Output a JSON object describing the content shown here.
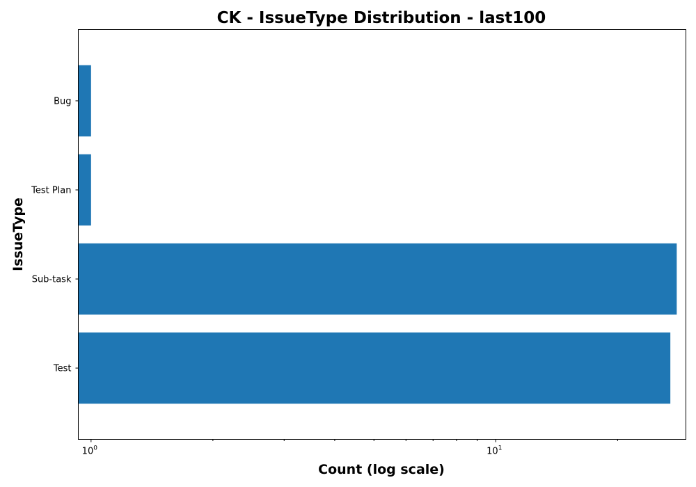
{
  "chart_data": {
    "type": "bar",
    "orientation": "horizontal",
    "title": "CK - IssueType Distribution - last100",
    "xlabel": "Count (log scale)",
    "ylabel": "IssueType",
    "xscale": "log",
    "xlim": [
      0.93,
      29.5
    ],
    "categories": [
      "Test",
      "Sub-task",
      "Test Plan",
      "Bug"
    ],
    "values": [
      27,
      28,
      1,
      1
    ],
    "x_major_ticks": [
      {
        "value": 1,
        "base": "10",
        "exp": "0"
      },
      {
        "value": 10,
        "base": "10",
        "exp": "1"
      }
    ],
    "x_minor_ticks": [
      2,
      3,
      4,
      5,
      6,
      7,
      8,
      9,
      20
    ],
    "bar_color": "#1f77b4",
    "grid": false,
    "legend": "none"
  }
}
